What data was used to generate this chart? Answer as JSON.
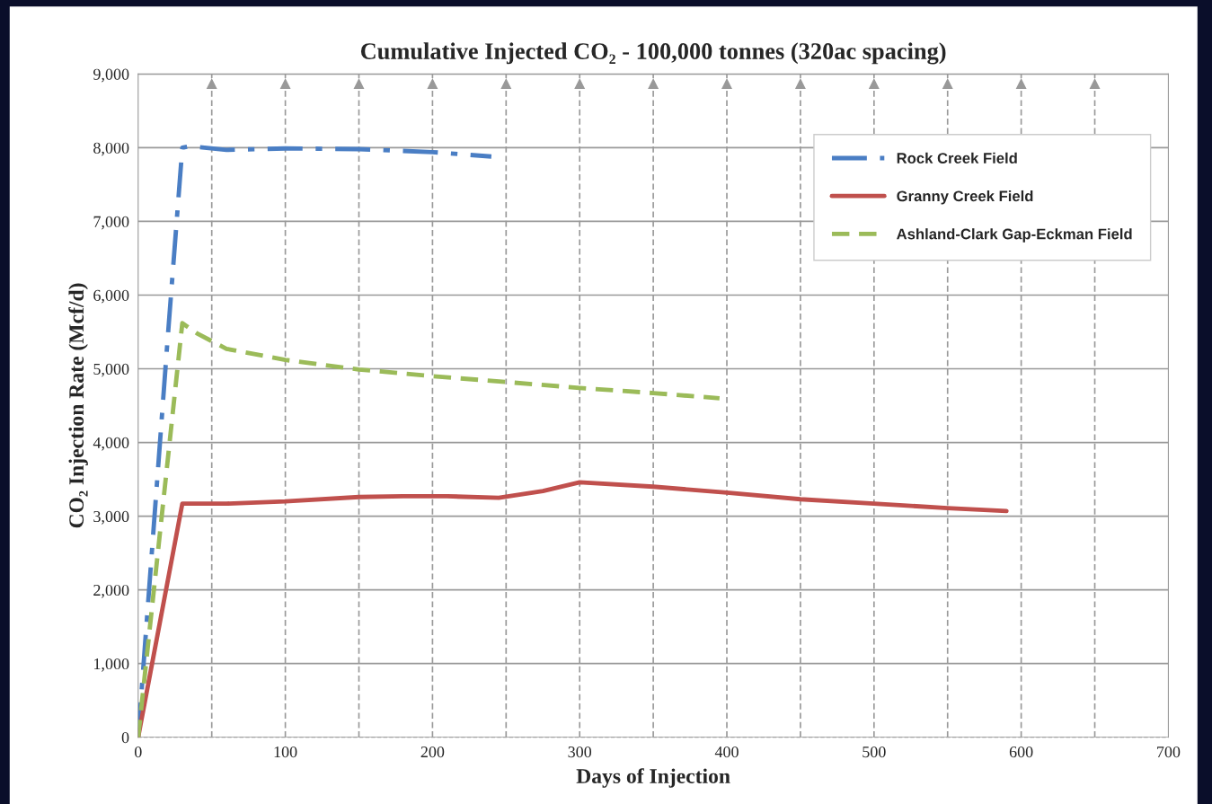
{
  "chart_data": {
    "type": "line",
    "title": "Cumulative Injected CO₂ - 100,000 tonnes (320ac spacing)",
    "xlabel": "Days of Injection",
    "ylabel": "CO₂ Injection Rate (Mcf/d)",
    "xlim": [
      0,
      700
    ],
    "xticks": [
      0,
      100,
      200,
      300,
      400,
      500,
      600,
      700
    ],
    "ylim": [
      0,
      9000
    ],
    "yticks": [
      0,
      {
        "value": 1000,
        "label": "1,000"
      },
      {
        "value": 2000,
        "label": "2,000"
      },
      {
        "value": 3000,
        "label": "3,000"
      },
      {
        "value": 4000,
        "label": "4,000"
      },
      {
        "value": 5000,
        "label": "5,000"
      },
      {
        "value": 6000,
        "label": "6,000"
      },
      {
        "value": 7000,
        "label": "7,000"
      },
      {
        "value": 8000,
        "label": "8,000"
      },
      {
        "value": 9000,
        "label": "9,000"
      }
    ],
    "grid": "y",
    "legend": "top right",
    "marker": "none",
    "ref_lines": [
      {
        "axis": "x",
        "value": 50,
        "color": "#999999",
        "line_style": "dashed"
      },
      {
        "axis": "x",
        "value": 100,
        "color": "#999999",
        "line_style": "dashed"
      },
      {
        "axis": "x",
        "value": 150,
        "color": "#999999",
        "line_style": "dashed"
      },
      {
        "axis": "x",
        "value": 200,
        "color": "#999999",
        "line_style": "dashed"
      },
      {
        "axis": "x",
        "value": 250,
        "color": "#999999",
        "line_style": "dashed"
      },
      {
        "axis": "x",
        "value": 300,
        "color": "#999999",
        "line_style": "dashed"
      },
      {
        "axis": "x",
        "value": 350,
        "color": "#999999",
        "line_style": "dashed"
      },
      {
        "axis": "x",
        "value": 400,
        "color": "#999999",
        "line_style": "dashed"
      },
      {
        "axis": "x",
        "value": 450,
        "color": "#999999",
        "line_style": "dashed"
      },
      {
        "axis": "x",
        "value": 500,
        "color": "#999999",
        "line_style": "dashed"
      },
      {
        "axis": "x",
        "value": 550,
        "color": "#999999",
        "line_style": "dashed"
      },
      {
        "axis": "x",
        "value": 600,
        "color": "#999999",
        "line_style": "dashed"
      },
      {
        "axis": "x",
        "value": 650,
        "color": "#999999",
        "line_style": "dashed"
      }
    ],
    "series": [
      {
        "name": "Rock Creek Field",
        "color": "#4a7ec4",
        "line_style": "dashdot",
        "x": [
          0,
          10,
          20,
          30,
          35,
          60,
          100,
          150,
          200,
          240
        ],
        "values": [
          0,
          2700,
          5400,
          8000,
          8020,
          7970,
          7990,
          7980,
          7940,
          7880
        ]
      },
      {
        "name": "Granny Creek Field",
        "color": "#c0504d",
        "line_style": "solid",
        "x": [
          0,
          30,
          60,
          100,
          150,
          180,
          210,
          245,
          275,
          300,
          350,
          400,
          450,
          500,
          550,
          590
        ],
        "values": [
          0,
          3170,
          3170,
          3200,
          3260,
          3270,
          3270,
          3250,
          3340,
          3460,
          3400,
          3320,
          3230,
          3170,
          3110,
          3070
        ]
      },
      {
        "name": "Ashland-Clark Gap-Eckman Field",
        "color": "#9bbb59",
        "line_style": "dashed",
        "x": [
          0,
          30,
          40,
          60,
          100,
          150,
          200,
          250,
          300,
          350,
          395
        ],
        "values": [
          0,
          5620,
          5480,
          5270,
          5120,
          4990,
          4900,
          4820,
          4740,
          4670,
          4600
        ]
      }
    ]
  }
}
